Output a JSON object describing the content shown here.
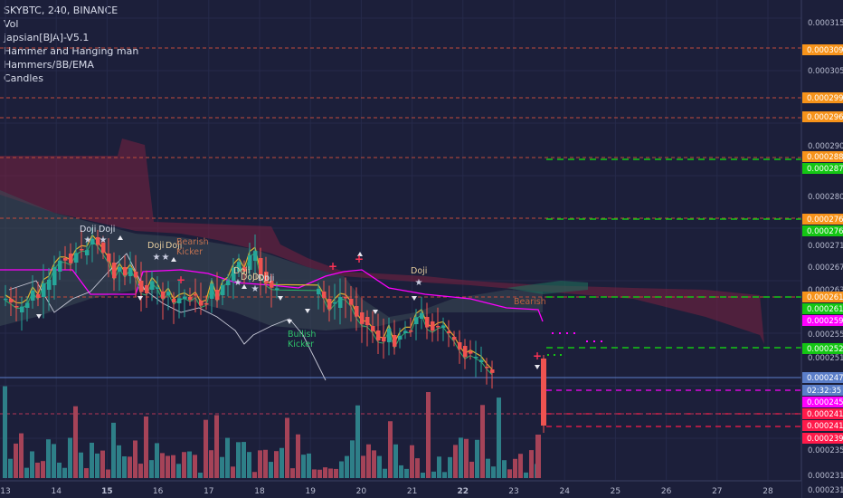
{
  "symbol": "SKYBTC, 240, BINANCE",
  "indicators": [
    "Vol",
    "japsian[BJA]-V5.1",
    "Hammer and Hanging man",
    "Hammers/BB/EMA",
    "Candles"
  ],
  "price_axis_ticks": [
    "0.000315",
    "0.000305",
    "0.000290",
    "0.000280",
    "0.000271",
    "0.000267",
    "0.000263",
    "0.000255",
    "0.000251",
    "0.000235",
    "0.000231",
    "0.000231"
  ],
  "price_badges": [
    {
      "text": "0.000309",
      "color": "#f7931a"
    },
    {
      "text": "0.000299",
      "color": "#f7931a"
    },
    {
      "text": "0.000296",
      "color": "#f7931a"
    },
    {
      "text": "0.000288",
      "color": "#f7931a"
    },
    {
      "text": "0.000287",
      "color": "#14c614"
    },
    {
      "text": "0.000276",
      "color": "#f7931a"
    },
    {
      "text": "0.000276",
      "color": "#14c614"
    },
    {
      "text": "0.000261",
      "color": "#f7931a"
    },
    {
      "text": "0.000261",
      "color": "#14c614"
    },
    {
      "text": "0.000259",
      "color": "#ff00ff"
    },
    {
      "text": "0.000252",
      "color": "#14c614"
    },
    {
      "text": "0.000247",
      "color": "#5b7ec9"
    },
    {
      "text": "02:32:35",
      "color": "#5b7ec9"
    },
    {
      "text": "0.000245",
      "color": "#ff00ff"
    },
    {
      "text": "0.000241",
      "color": "#ff1a4a"
    },
    {
      "text": "0.000241",
      "color": "#ff1a4a"
    },
    {
      "text": "0.000239",
      "color": "#ff1a4a"
    }
  ],
  "time_axis_ticks": [
    "13",
    "14",
    "15",
    "16",
    "17",
    "18",
    "19",
    "20",
    "21",
    "22",
    "23",
    "24",
    "25",
    "26",
    "27",
    "28"
  ],
  "chart_labels": [
    "Doji",
    "Doji",
    "Doji",
    "Doji",
    "Bearish Kicker",
    "Doji",
    "Doji",
    "Doji",
    "Doji",
    "Bullish Kicker",
    "Doji",
    "Bearish"
  ],
  "colors": {
    "background": "#1c1f3a",
    "bull_candle": "#26a69a",
    "bear_candle": "#ef5350",
    "vol_bull": "#2e7f88",
    "vol_bear": "#a54358",
    "cloud_bear": "#7a2040",
    "cloud_bull": "#3d4b56",
    "band": "#ff00ff",
    "level_green": "#14c614",
    "level_magenta": "#ff00ff",
    "level_red": "#ff1a4a"
  }
}
